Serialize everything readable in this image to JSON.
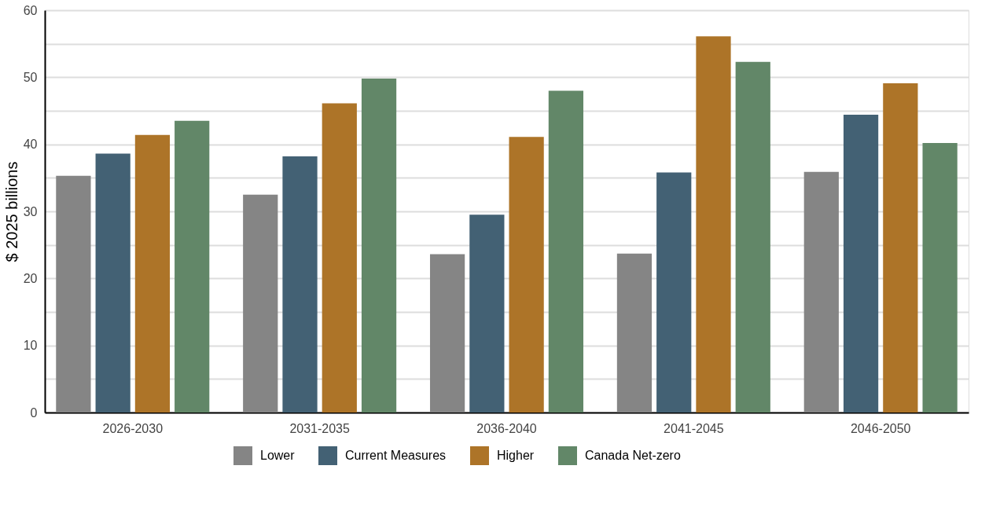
{
  "chart_data": {
    "type": "bar",
    "ylabel": "$ 2025 billions",
    "categories": [
      "2026-2030",
      "2031-2035",
      "2036-2040",
      "2041-2045",
      "2046-2050"
    ],
    "series": [
      {
        "name": "Lower",
        "color": "#858585",
        "values": [
          35.3,
          32.5,
          23.6,
          23.7,
          35.9
        ]
      },
      {
        "name": "Current Measures",
        "color": "#436174",
        "values": [
          38.6,
          38.2,
          29.5,
          35.8,
          44.4
        ]
      },
      {
        "name": "Higher",
        "color": "#ad7428",
        "values": [
          41.4,
          46.1,
          41.1,
          56.1,
          49.1
        ]
      },
      {
        "name": "Canada Net-zero",
        "color": "#628768",
        "values": [
          43.5,
          49.8,
          48.0,
          52.3,
          40.2
        ]
      }
    ],
    "ylim": [
      0,
      60
    ],
    "yticks": [
      0,
      {
        "value": 5,
        "label": null
      },
      10,
      {
        "value": 15,
        "label": null
      },
      20,
      {
        "value": 25,
        "label": null
      },
      30,
      {
        "value": 35,
        "label": null
      },
      40,
      {
        "value": 45,
        "label": null
      },
      50,
      {
        "value": 55,
        "label": null
      },
      60
    ],
    "grid": "y",
    "legend": "bottom"
  }
}
